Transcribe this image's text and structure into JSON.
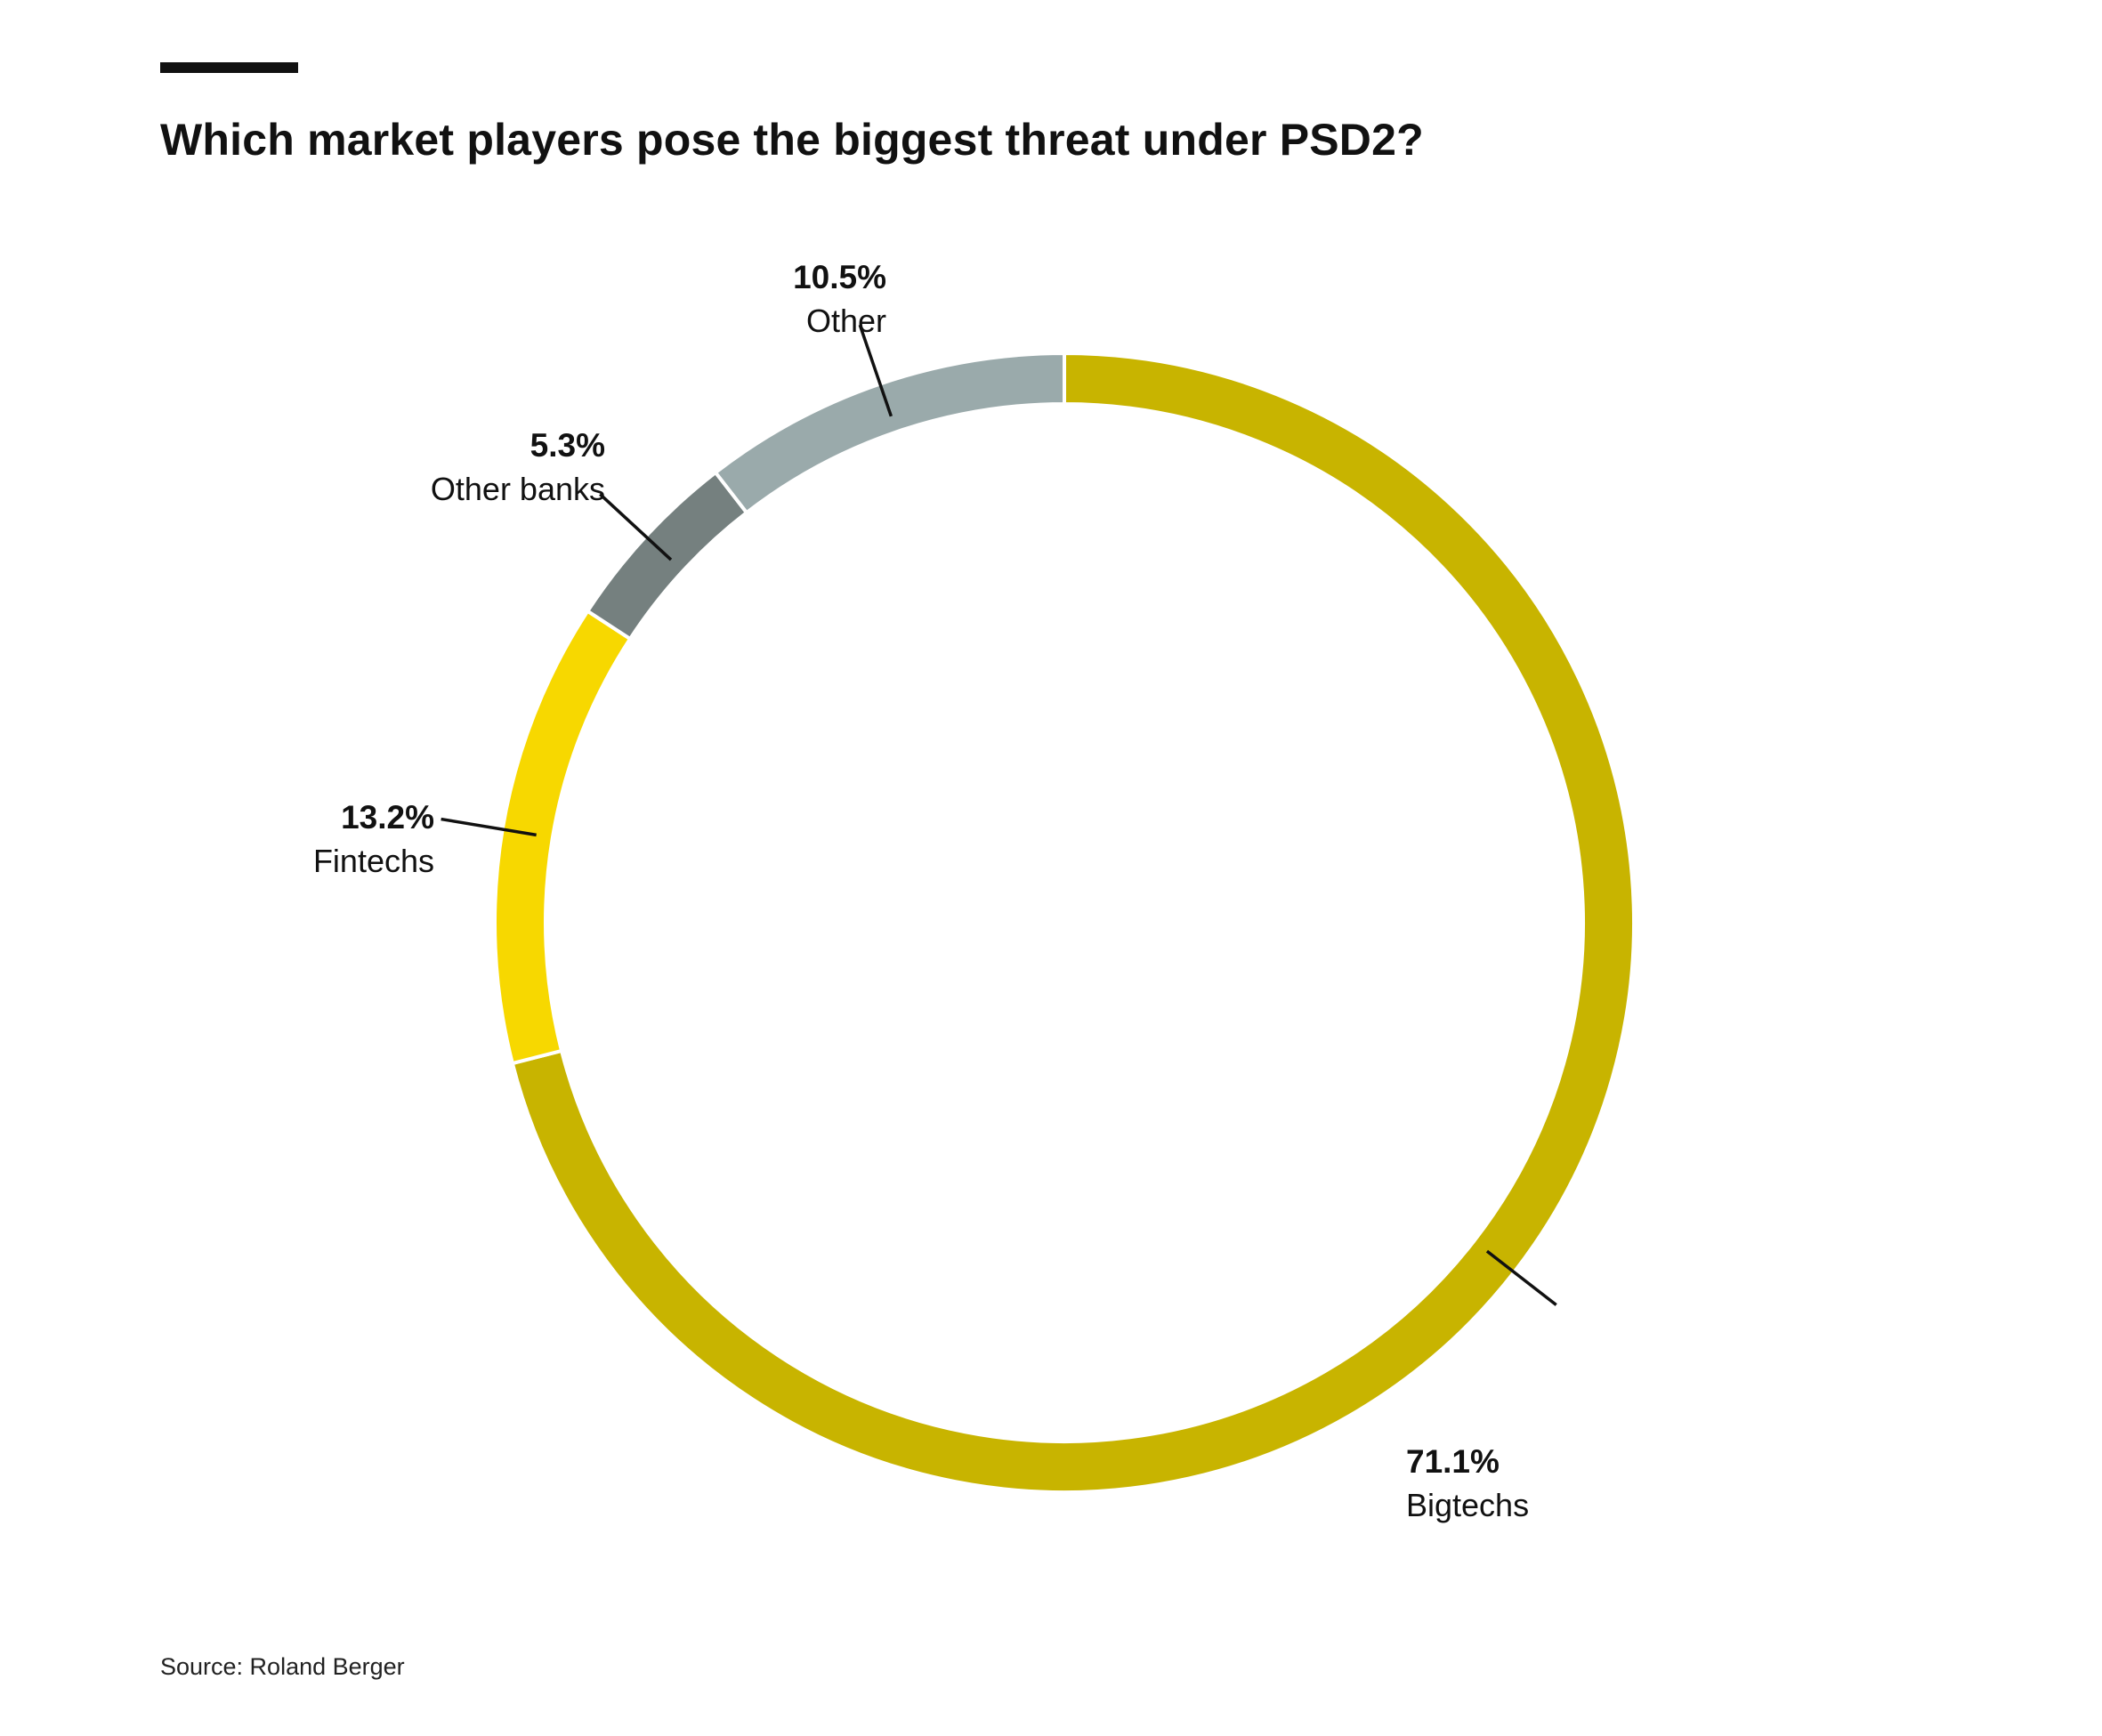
{
  "title": "Which market players pose the biggest threat under PSD2?",
  "source": "Source: Roland Berger",
  "colors": {
    "accent_bar": "#111111",
    "gap": "#ffffff"
  },
  "chart_data": {
    "type": "pie",
    "variant": "donut",
    "title": "Which market players pose the biggest threat under PSD2?",
    "unit": "%",
    "slices": [
      {
        "label": "Bigtechs",
        "value": 71.1,
        "value_label": "71.1%",
        "color": "#c8b400"
      },
      {
        "label": "Fintechs",
        "value": 13.2,
        "value_label": "13.2%",
        "color": "#f7d800"
      },
      {
        "label": "Other banks",
        "value": 5.3,
        "value_label": "5.3%",
        "color": "#75807f"
      },
      {
        "label": "Other",
        "value": 10.5,
        "value_label": "10.5%",
        "color": "#9aaaab"
      }
    ],
    "start_angle": "12 o'clock",
    "direction": "clockwise",
    "legend": "none (direct labels)"
  }
}
